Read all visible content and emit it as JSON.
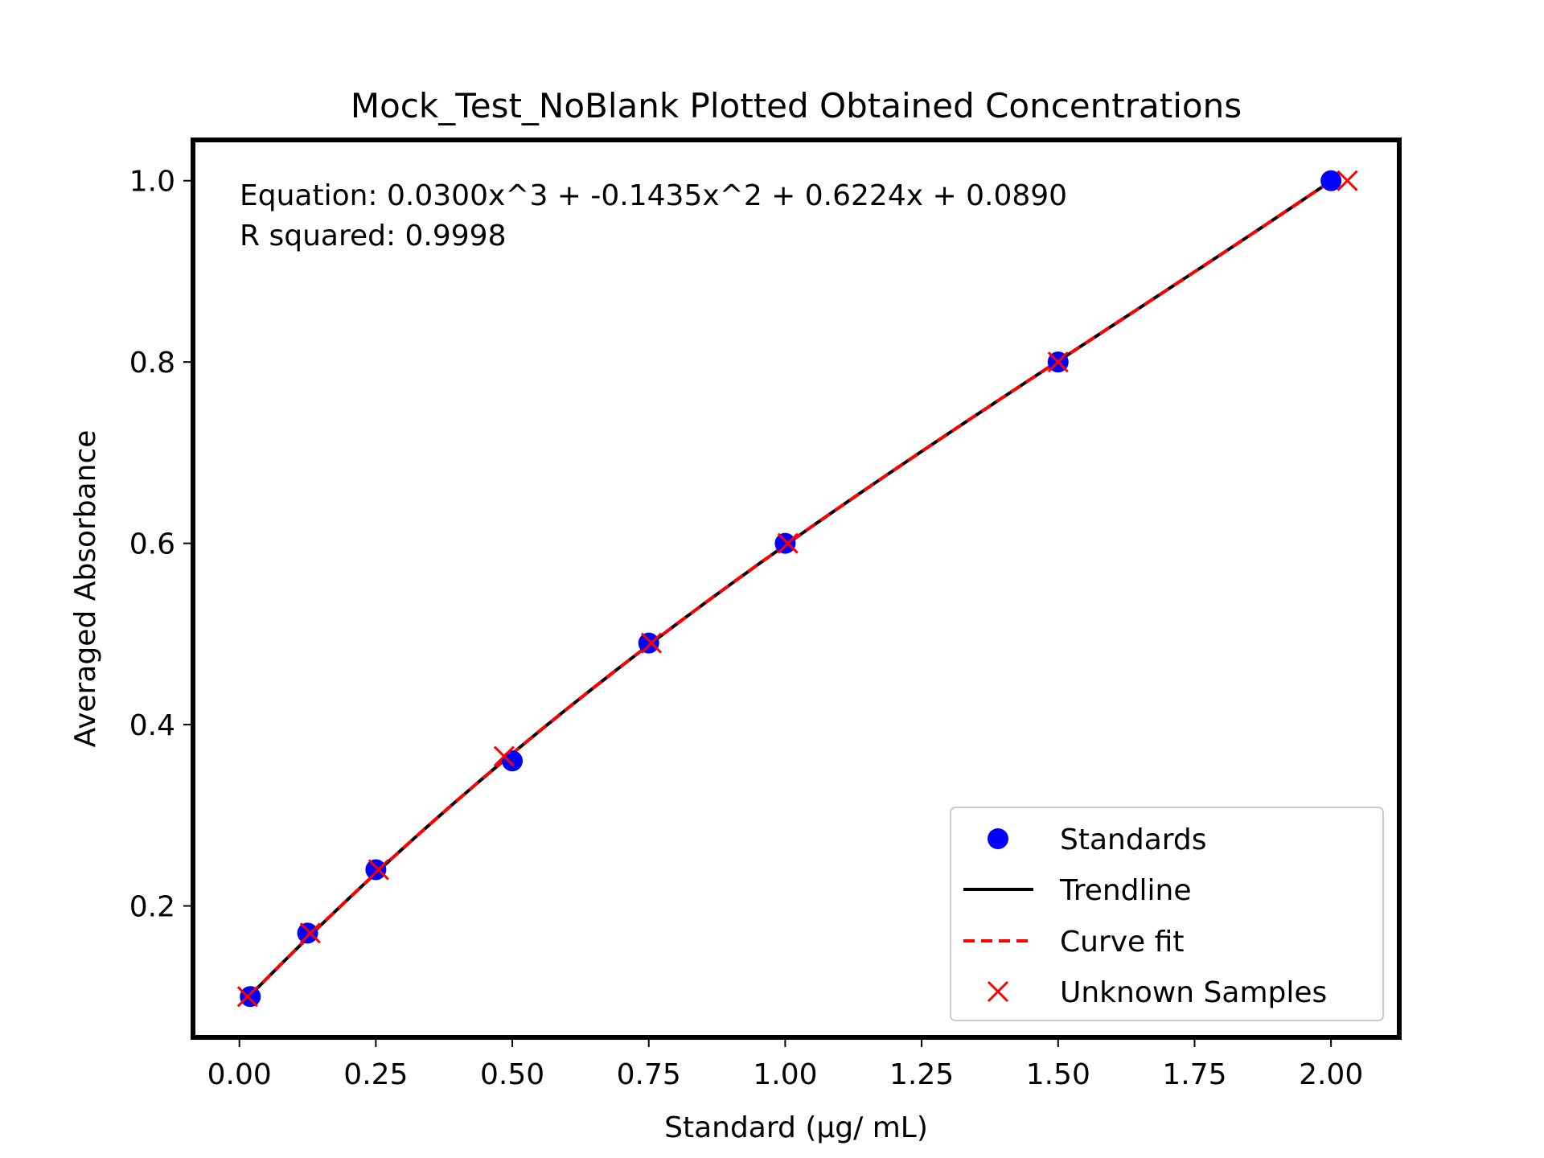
{
  "chart_data": {
    "type": "scatter",
    "title": "Mock_Test_NoBlank Plotted Obtained Concentrations",
    "xlabel": "Standard (µg/ mL)",
    "ylabel": "Averaged Absorbance",
    "xlim": [
      -0.085,
      2.125
    ],
    "ylim": [
      0.055,
      1.045
    ],
    "x_ticks": [
      "0.00",
      "0.25",
      "0.50",
      "0.75",
      "1.00",
      "1.25",
      "1.50",
      "1.75",
      "2.00"
    ],
    "y_ticks": [
      "0.2",
      "0.4",
      "0.6",
      "0.8",
      "1.0"
    ],
    "annotations": [
      "Equation: 0.0300x^3 + -0.1435x^2 + 0.6224x + 0.0890",
      "R squared: 0.9998"
    ],
    "legend_position": "lower right",
    "grid": false,
    "series": [
      {
        "name": "Standards",
        "kind": "marker-circle",
        "color": "#0000ff",
        "x": [
          0.02,
          0.125,
          0.25,
          0.5,
          0.75,
          1.0,
          1.5,
          2.0
        ],
        "y": [
          0.1,
          0.17,
          0.24,
          0.36,
          0.49,
          0.6,
          0.8,
          1.0
        ]
      },
      {
        "name": "Trendline",
        "kind": "line-solid",
        "color": "#000000",
        "coefficients": [
          0.03,
          -0.1435,
          0.6224,
          0.089
        ],
        "x_range": [
          0.02,
          2.0
        ]
      },
      {
        "name": "Curve fit",
        "kind": "line-dashed",
        "color": "#ff0000",
        "coefficients": [
          0.03,
          -0.1435,
          0.6224,
          0.089
        ],
        "x_range": [
          0.02,
          2.0
        ]
      },
      {
        "name": "Unknown Samples",
        "kind": "marker-x",
        "color": "#ff0000",
        "x": [
          0.015,
          0.13,
          0.255,
          0.485,
          0.755,
          1.005,
          1.5,
          2.03
        ],
        "y": [
          0.1,
          0.17,
          0.24,
          0.365,
          0.49,
          0.6,
          0.8,
          1.0
        ]
      }
    ]
  }
}
